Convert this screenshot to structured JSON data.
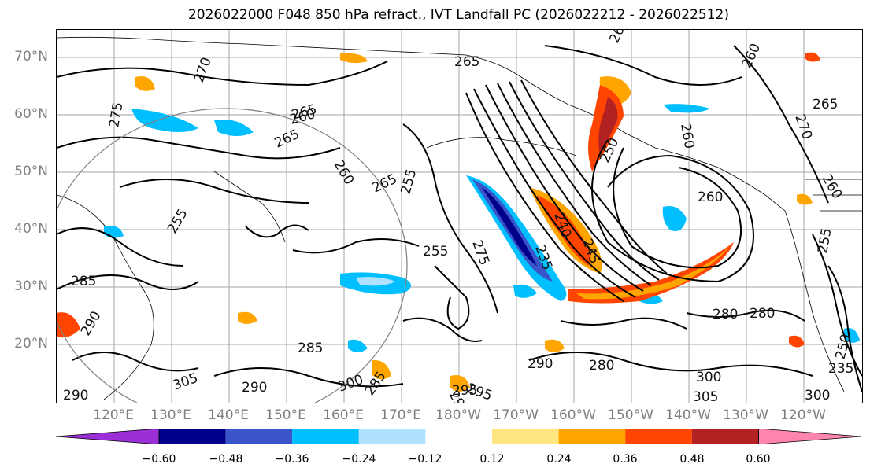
{
  "title": "2026022000 F048 850 hPa refract., IVT Landfall PC (2026022212 - 2026022512)",
  "colors": {
    "bins": [
      "#9b30d9",
      "#00008b",
      "#3a55c9",
      "#00bfff",
      "#b0e2ff",
      "#ffffff",
      "#ffe680",
      "#ffa500",
      "#ff4500",
      "#b22222",
      "#ff85ad"
    ],
    "contour": "#000000",
    "grid": "#808080",
    "axis_label": "#7f7f7f"
  },
  "lat_labels": [
    "70°N",
    "60°N",
    "50°N",
    "40°N",
    "30°N",
    "20°N"
  ],
  "lon_labels": [
    "120°E",
    "130°E",
    "140°E",
    "150°E",
    "160°E",
    "170°E",
    "180°W",
    "170°W",
    "160°W",
    "150°W",
    "140°W",
    "130°W",
    "120°W"
  ],
  "colorbar": {
    "ticks": [
      "−0.60",
      "−0.48",
      "−0.36",
      "−0.24",
      "−0.12",
      "0.12",
      "0.24",
      "0.36",
      "0.48",
      "0.60"
    ],
    "levels": [
      -0.6,
      -0.48,
      -0.36,
      -0.24,
      -0.12,
      0.12,
      0.24,
      0.36,
      0.48,
      0.6
    ]
  },
  "contour_labels": [
    "270",
    "275",
    "265",
    "265",
    "265",
    "260",
    "265",
    "255",
    "255",
    "275",
    "265",
    "260",
    "250",
    "260",
    "260",
    "240",
    "235",
    "245",
    "260",
    "270",
    "260",
    "255",
    "280",
    "280",
    "290",
    "285",
    "295",
    "300",
    "305",
    "285",
    "285",
    "300",
    "295",
    "290",
    "290",
    "280",
    "290",
    "295",
    "300",
    "305",
    "235",
    "255",
    "250",
    "265"
  ]
}
